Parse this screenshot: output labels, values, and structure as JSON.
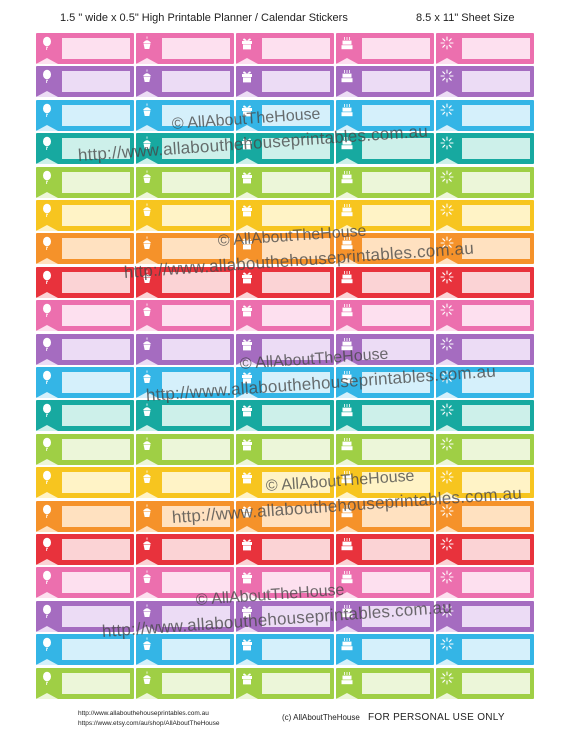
{
  "header": {
    "title": "1.5 \" wide x 0.5\" High Printable Planner / Calendar Stickers",
    "sheet_size": "8.5 x 11\" Sheet Size"
  },
  "palette": [
    {
      "main": "#ec6fae",
      "light": "#fde0ef"
    },
    {
      "main": "#a56cc0",
      "light": "#ecdcf5"
    },
    {
      "main": "#34b5e6",
      "light": "#d5f0fb"
    },
    {
      "main": "#17a9a0",
      "light": "#cdf0ea"
    },
    {
      "main": "#9fcf45",
      "light": "#ecf6d9"
    },
    {
      "main": "#f7c51f",
      "light": "#fff3c6"
    },
    {
      "main": "#f5922a",
      "light": "#ffe1c0"
    },
    {
      "main": "#e8323c",
      "light": "#fbd3d5"
    }
  ],
  "row_colors": [
    0,
    1,
    2,
    3,
    4,
    5,
    6,
    7,
    0,
    1,
    2,
    3,
    4,
    5,
    6,
    7,
    0,
    1,
    2,
    4
  ],
  "column_icons": [
    "balloon-icon",
    "cupcake-icon",
    "gift-icon",
    "cake-icon",
    "fireworks-icon"
  ],
  "watermarks": [
    {
      "name": "© AllAboutTheHouse",
      "url": "http://www.allabouthehouseprintables.com.au"
    },
    {
      "name": "© AllAboutTheHouse",
      "url": "http://www.allabouthehouseprintables.com.au"
    },
    {
      "name": "© AllAboutTheHouse",
      "url": "http://www.allabouthehouseprintables.com.au"
    },
    {
      "name": "© AllAboutTheHouse",
      "url": "http://www.allabouthehouseprintables.com.au"
    },
    {
      "name": "© AllAboutTheHouse",
      "url": "http://www.allabouthehouseprintables.com.au"
    }
  ],
  "footer": {
    "website": "http://www.allabouthehouseprintables.com.au",
    "etsy": "https://www.etsy.com/au/shop/AllAboutTheHouse",
    "copyright": "(c) AllAboutTheHouse",
    "usage": "FOR PERSONAL USE ONLY"
  }
}
